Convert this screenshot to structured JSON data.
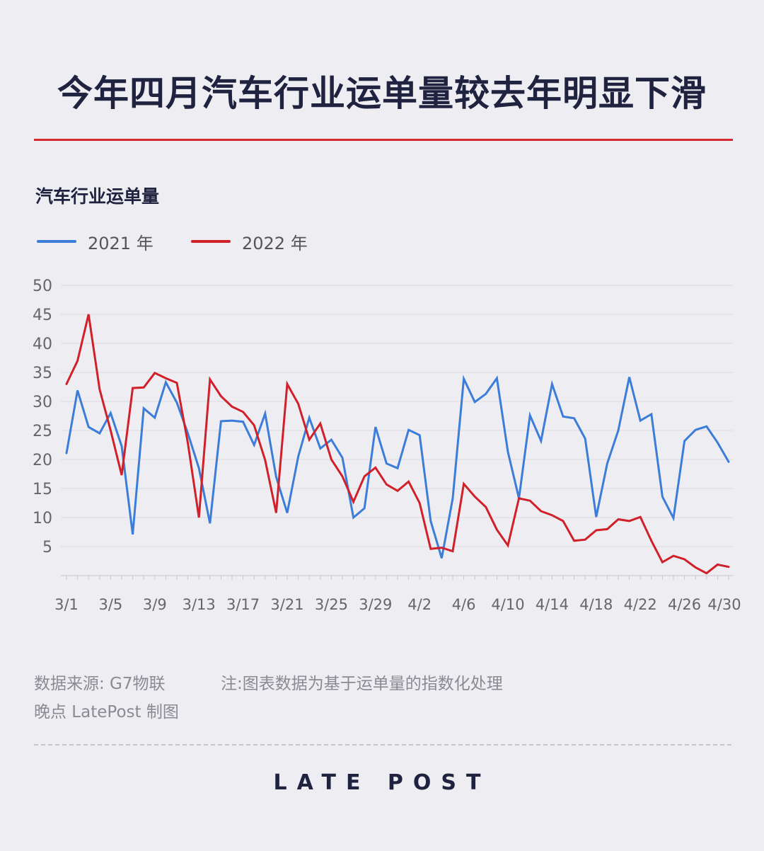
{
  "header": {
    "title": "今年四月汽车行业运单量较去年明显下滑"
  },
  "footer": {
    "source": "数据来源: G7物联",
    "note": "注:图表数据为基于运单量的指数化处理",
    "credit": "晚点 LatePost 制图",
    "logo": "LATE POST"
  },
  "colors": {
    "title": "#1f2340",
    "accent_rule": "#d42a2f",
    "series_2021": "#3b7dd8",
    "series_2022": "#d0202a"
  },
  "chart_data": {
    "type": "line",
    "title": "汽车行业运单量",
    "ylim": [
      0,
      50
    ],
    "yticks": [
      5,
      10,
      15,
      20,
      25,
      30,
      35,
      40,
      45,
      50
    ],
    "grid": true,
    "legend_position": "top-left",
    "x": [
      "3/1",
      "3/2",
      "3/3",
      "3/4",
      "3/5",
      "3/6",
      "3/7",
      "3/8",
      "3/9",
      "3/10",
      "3/11",
      "3/12",
      "3/13",
      "3/14",
      "3/15",
      "3/16",
      "3/17",
      "3/18",
      "3/19",
      "3/20",
      "3/21",
      "3/22",
      "3/23",
      "3/24",
      "3/25",
      "3/26",
      "3/27",
      "3/28",
      "3/29",
      "3/30",
      "3/31",
      "4/1",
      "4/2",
      "4/3",
      "4/4",
      "4/5",
      "4/6",
      "4/7",
      "4/8",
      "4/9",
      "4/10",
      "4/11",
      "4/12",
      "4/13",
      "4/14",
      "4/15",
      "4/16",
      "4/17",
      "4/18",
      "4/19",
      "4/20",
      "4/21",
      "4/22",
      "4/23",
      "4/24",
      "4/25",
      "4/26",
      "4/27",
      "4/28",
      "4/29",
      "4/30"
    ],
    "xtick_labels": [
      "3/1",
      "3/5",
      "3/9",
      "3/13",
      "3/17",
      "3/21",
      "3/25",
      "3/29",
      "4/2",
      "4/6",
      "4/10",
      "4/14",
      "4/18",
      "4/22",
      "4/26",
      "4/30"
    ],
    "series": [
      {
        "name": "2021 年",
        "color": "#3b7dd8",
        "values": [
          21.1,
          31.9,
          25.6,
          24.5,
          28.0,
          22.3,
          7.1,
          28.8,
          27.2,
          33.3,
          29.8,
          24.5,
          18.5,
          9.0,
          26.6,
          26.7,
          26.5,
          22.5,
          27.9,
          17.0,
          10.8,
          20.5,
          27.2,
          21.9,
          23.4,
          20.3,
          10.0,
          11.6,
          25.6,
          19.3,
          18.5,
          25.1,
          24.2,
          9.4,
          3.0,
          13.3,
          33.9,
          29.9,
          31.3,
          34.0,
          21.3,
          13.3,
          27.6,
          23.2,
          33.0,
          27.4,
          27.1,
          23.6,
          10.1,
          19.3,
          25.0,
          34.2,
          26.7,
          27.8,
          13.6,
          9.9,
          23.2,
          25.1,
          25.7,
          22.9,
          19.6
        ]
      },
      {
        "name": "2022 年",
        "color": "#d0202a",
        "values": [
          33.0,
          37.0,
          45.0,
          32.1,
          25.0,
          17.3,
          32.3,
          32.4,
          34.9,
          34.0,
          33.2,
          22.8,
          10.0,
          33.8,
          30.9,
          29.1,
          28.2,
          25.9,
          19.9,
          10.8,
          33.0,
          29.6,
          23.4,
          26.2,
          20.0,
          17.1,
          12.7,
          17.1,
          18.6,
          15.7,
          14.6,
          16.2,
          12.5,
          4.6,
          4.8,
          4.2,
          15.8,
          13.6,
          11.8,
          7.9,
          5.2,
          13.3,
          12.9,
          11.1,
          10.4,
          9.4,
          6.0,
          6.2,
          7.8,
          8.0,
          9.7,
          9.4,
          10.1,
          6.0,
          2.3,
          3.4,
          2.8,
          1.4,
          0.4,
          1.9,
          1.5
        ]
      }
    ]
  }
}
